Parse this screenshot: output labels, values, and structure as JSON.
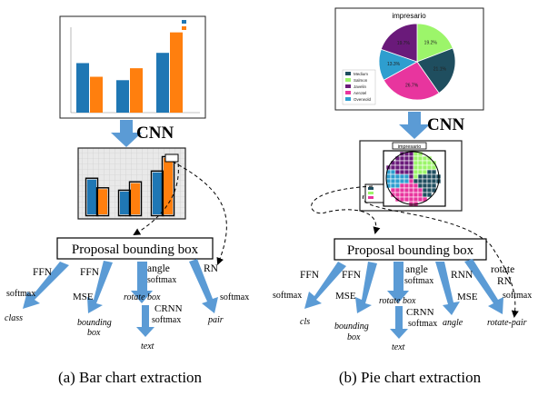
{
  "panels": [
    {
      "id": "bar",
      "caption": "(a) Bar chart extraction",
      "cnn_label": "CNN",
      "proposal_label": "Proposal bounding box",
      "input_chart": {
        "type": "bar",
        "legend": [
          "",
          ""
        ],
        "colors": [
          "#1f77b4",
          "#ff7f0e"
        ],
        "categories": [
          "",
          "",
          ""
        ],
        "series": [
          {
            "values": [
              58,
              38,
              70
            ]
          },
          {
            "values": [
              42,
              52,
              94
            ]
          }
        ]
      },
      "branches": [
        {
          "head": "FFN",
          "loss": "softmax",
          "output": "class"
        },
        {
          "head": "FFN",
          "loss": "MSE",
          "output": "bounding box"
        },
        {
          "head": "angle",
          "loss": "softmax",
          "extra": "rotate box",
          "output": ""
        },
        {
          "head": "CRNN",
          "loss": "softmax",
          "output": "text"
        },
        {
          "head": "RN",
          "loss": "softmax",
          "output": "pair"
        }
      ]
    },
    {
      "id": "pie",
      "caption": "(b) Pie chart extraction",
      "cnn_label": "CNN",
      "proposal_label": "Proposal bounding box",
      "input_chart": {
        "type": "pie",
        "title": "impresario",
        "legend": [
          "Medium",
          "Salmon",
          "Javelin",
          "Aerotel",
          "Overwold"
        ],
        "colors": [
          "#1f4e5f",
          "#9cf56a",
          "#6a1a7a",
          "#e8359e",
          "#2e9ecf"
        ],
        "slices": [
          {
            "label": "19.2%",
            "value": 19.2,
            "color": "#9cf56a"
          },
          {
            "label": "21.1%",
            "value": 21.1,
            "color": "#1f4e5f"
          },
          {
            "label": "26.7%",
            "value": 26.7,
            "color": "#e8359e"
          },
          {
            "label": "13.3%",
            "value": 13.3,
            "color": "#2e9ecf"
          },
          {
            "label": "19.7%",
            "value": 19.7,
            "color": "#6a1a7a"
          }
        ]
      },
      "detection_title": "impresario",
      "branches": [
        {
          "head": "FFN",
          "loss": "softmax",
          "output": "cls"
        },
        {
          "head": "FFN",
          "loss": "MSE",
          "output": "bounding box"
        },
        {
          "head": "angle",
          "loss": "softmax",
          "extra": "rotate box",
          "output": ""
        },
        {
          "head": "CRNN",
          "loss": "softmax",
          "output": "text"
        },
        {
          "head": "RNN",
          "loss": "MSE",
          "output": "angle"
        },
        {
          "head": "rotate RN",
          "loss": "softmax",
          "output": "rotate-pair"
        }
      ]
    }
  ]
}
